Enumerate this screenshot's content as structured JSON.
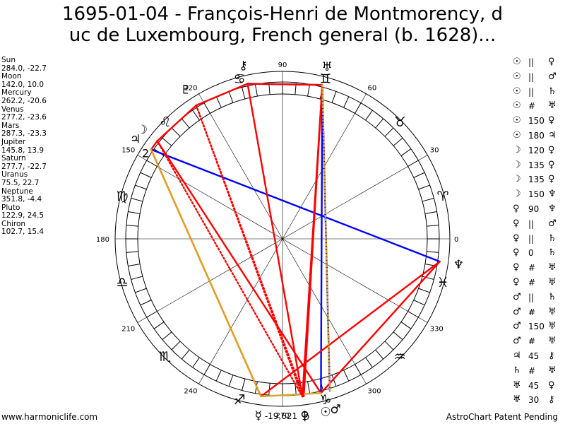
{
  "title_line1": "1695-01-04 - François-Henri de Montmorency, d",
  "title_line2": "uc de Luxembourg, French general (b. 1628)...",
  "positions": [
    {
      "name": "Sun",
      "value": "284.0, -22.7",
      "lon": 284.0,
      "glyph": "☉",
      "color": "#000000"
    },
    {
      "name": "Moon",
      "value": "142.0, 10.0",
      "lon": 142.0,
      "glyph": "☽",
      "color": "#000000"
    },
    {
      "name": "Mercury",
      "value": "262.2, -20.6",
      "lon": 262.2,
      "glyph": "☿",
      "color": "#000000"
    },
    {
      "name": "Venus",
      "value": "277.2, -23.6",
      "lon": 277.2,
      "glyph": "♀",
      "color": "#000000"
    },
    {
      "name": "Mars",
      "value": "287.3, -23.3",
      "lon": 287.3,
      "glyph": "♂",
      "color": "#000000"
    },
    {
      "name": "Jupiter",
      "value": "145.8, 13.9",
      "lon": 145.8,
      "glyph": "♃",
      "color": "#000000"
    },
    {
      "name": "Saturn",
      "value": "277.7, -22.7",
      "lon": 277.7,
      "glyph": "♄",
      "color": "#000000"
    },
    {
      "name": "Uranus",
      "value": "75.5, 22.7",
      "lon": 75.5,
      "glyph": "♅",
      "color": "#000000"
    },
    {
      "name": "Neptune",
      "value": "351.8, -4.4",
      "lon": 351.8,
      "glyph": "♆",
      "color": "#000000"
    },
    {
      "name": "Pluto",
      "value": "122.9, 24.5",
      "lon": 122.9,
      "glyph": "♇",
      "color": "#000000"
    },
    {
      "name": "Chiron",
      "value": "102.7, 15.4",
      "lon": 102.7,
      "glyph": "⚷",
      "color": "#000000"
    }
  ],
  "aspects": [
    {
      "p1": "☉",
      "sym": "||",
      "p2": "♀",
      "c1": "#000000",
      "c2": "#000000"
    },
    {
      "p1": "☉",
      "sym": "||",
      "p2": "♂",
      "c1": "#000000",
      "c2": "#000000"
    },
    {
      "p1": "☉",
      "sym": "||",
      "p2": "♄",
      "c1": "#000000",
      "c2": "#000000"
    },
    {
      "p1": "☉",
      "sym": "#",
      "p2": "♅",
      "c1": "#000000",
      "c2": "#000000"
    },
    {
      "p1": "☉",
      "sym": "150",
      "p2": "♀",
      "c1": "#000000",
      "c2": "#000000"
    },
    {
      "p1": "☉",
      "sym": "180",
      "p2": "♃",
      "c1": "#000000",
      "c2": "#000000"
    },
    {
      "p1": "☽",
      "sym": "120",
      "p2": "♀",
      "c1": "#000000",
      "c2": "#000000"
    },
    {
      "p1": "☽",
      "sym": "135",
      "p2": "♀",
      "c1": "#000000",
      "c2": "#000000"
    },
    {
      "p1": "☽",
      "sym": "135",
      "p2": "♀",
      "c1": "#000000",
      "c2": "#000000"
    },
    {
      "p1": "☽",
      "sym": "150",
      "p2": "♆",
      "c1": "#000000",
      "c2": "#000000"
    },
    {
      "p1": "♀",
      "sym": "90",
      "p2": "♆",
      "c1": "#000000",
      "c2": "#000000"
    },
    {
      "p1": "♀",
      "sym": "||",
      "p2": "♂",
      "c1": "#000000",
      "c2": "#000000"
    },
    {
      "p1": "♀",
      "sym": "||",
      "p2": "♄",
      "c1": "#000000",
      "c2": "#000000"
    },
    {
      "p1": "♀",
      "sym": "0",
      "p2": "♄",
      "c1": "#000000",
      "c2": "#000000"
    },
    {
      "p1": "♀",
      "sym": "#",
      "p2": "♅",
      "c1": "#000000",
      "c2": "#000000"
    },
    {
      "p1": "♀",
      "sym": "#",
      "p2": "♅",
      "c1": "#000000",
      "c2": "#000000"
    },
    {
      "p1": "♂",
      "sym": "||",
      "p2": "♄",
      "c1": "#000000",
      "c2": "#000000"
    },
    {
      "p1": "♂",
      "sym": "#",
      "p2": "♅",
      "c1": "#000000",
      "c2": "#000000"
    },
    {
      "p1": "♂",
      "sym": "150",
      "p2": "♅",
      "c1": "#000000",
      "c2": "#000000"
    },
    {
      "p1": "♂",
      "sym": "#",
      "p2": "♅",
      "c1": "#000000",
      "c2": "#000000"
    },
    {
      "p1": "♃",
      "sym": "45",
      "p2": "⚷",
      "c1": "#000000",
      "c2": "#000000"
    },
    {
      "p1": "♄",
      "sym": "#",
      "p2": "♅",
      "c1": "#000000",
      "c2": "#000000"
    },
    {
      "p1": "♅",
      "sym": "45",
      "p2": "♀",
      "c1": "#000000",
      "c2": "#000000"
    },
    {
      "p1": "♅",
      "sym": "30",
      "p2": "⚷",
      "c1": "#000000",
      "c2": "#000000"
    }
  ],
  "degree_labels": [
    "0",
    "30",
    "60",
    "90",
    "120",
    "150",
    "180",
    "210",
    "240",
    "270",
    "300",
    "330"
  ],
  "zodiac_signs": [
    "♈",
    "♉",
    "♊",
    "♋",
    "♌",
    "♍",
    "♎",
    "♏",
    "♐",
    "♑",
    "♒",
    "♓"
  ],
  "house_cusp_label": "2",
  "bottom_value": "-19,621",
  "footer_left": "www.harmoniclife.com",
  "footer_right": "AstroChart Patent Pending",
  "aspect_lines": [
    {
      "from": 75.5,
      "to": 284.0,
      "color": "#0000ff",
      "style": "solid"
    },
    {
      "from": 75.5,
      "to": 287.3,
      "color": "#0000ff",
      "style": "solid"
    },
    {
      "from": 75.5,
      "to": 102.7,
      "color": "#0000ff",
      "style": "solid"
    },
    {
      "from": 145.8,
      "to": 351.8,
      "color": "#0000ff",
      "style": "solid"
    },
    {
      "from": 75.5,
      "to": 102.7,
      "color": "#ff0000",
      "style": "solid"
    },
    {
      "from": 102.7,
      "to": 122.9,
      "color": "#ff0000",
      "style": "solid"
    },
    {
      "from": 122.9,
      "to": 142.0,
      "color": "#ff0000",
      "style": "solid"
    },
    {
      "from": 142.0,
      "to": 145.8,
      "color": "#ff0000",
      "style": "solid"
    },
    {
      "from": 145.8,
      "to": 262.2,
      "color": "#ff0000",
      "style": "solid"
    },
    {
      "from": 262.2,
      "to": 351.8,
      "color": "#ff0000",
      "style": "solid"
    },
    {
      "from": 75.5,
      "to": 277.2,
      "color": "#ff0000",
      "style": "solid"
    },
    {
      "from": 75.5,
      "to": 277.7,
      "color": "#ff0000",
      "style": "solid"
    },
    {
      "from": 102.7,
      "to": 277.2,
      "color": "#ff0000",
      "style": "solid"
    },
    {
      "from": 284.0,
      "to": 351.8,
      "color": "#ff0000",
      "style": "solid"
    },
    {
      "from": 142.0,
      "to": 284.0,
      "color": "#ff0000",
      "style": "solid"
    },
    {
      "from": 145.8,
      "to": 262.2,
      "color": "#daa520",
      "style": "solid"
    },
    {
      "from": 262.2,
      "to": 284.0,
      "color": "#daa520",
      "style": "solid"
    },
    {
      "from": 122.9,
      "to": 277.2,
      "color": "#ff0000",
      "style": "dotted"
    },
    {
      "from": 122.9,
      "to": 277.7,
      "color": "#ff0000",
      "style": "dotted"
    },
    {
      "from": 142.0,
      "to": 277.2,
      "color": "#ff0000",
      "style": "dotted"
    },
    {
      "from": 75.5,
      "to": 287.3,
      "color": "#daa520",
      "style": "dotted"
    }
  ]
}
